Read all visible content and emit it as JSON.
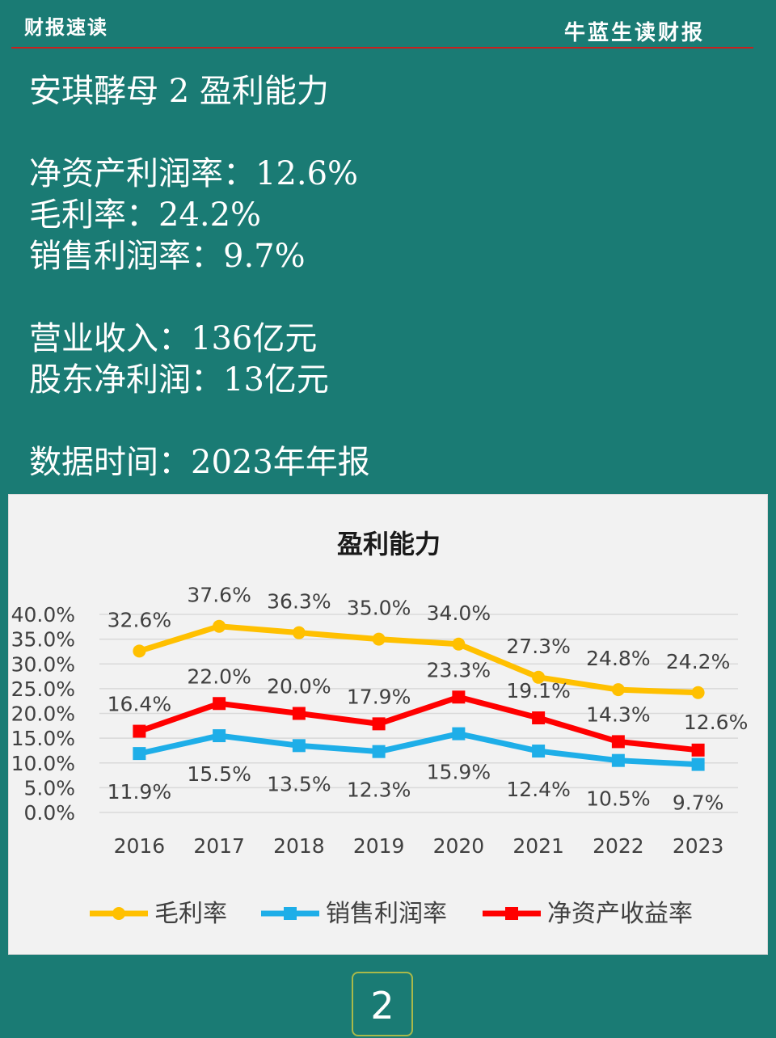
{
  "header": {
    "left_title": "财报速读",
    "right_title": "牛蓝生读财报"
  },
  "summary": {
    "heading": "安琪酵母 2 盈利能力",
    "roe": "净资产利润率：12.6%",
    "gross_margin": "毛利率：24.2%",
    "net_margin": "销售利润率：9.7%",
    "revenue": "营业收入：136亿元",
    "net_profit": "股东净利润：13亿元",
    "data_time": "数据时间：2023年年报"
  },
  "chart_data": {
    "type": "line",
    "title": "盈利能力",
    "categories": [
      "2016",
      "2017",
      "2018",
      "2019",
      "2020",
      "2021",
      "2022",
      "2023"
    ],
    "y_ticks": [
      "40.0%",
      "35.0%",
      "30.0%",
      "25.0%",
      "20.0%",
      "15.0%",
      "10.0%",
      "5.0%",
      "0.0%"
    ],
    "ylim": [
      0,
      40
    ],
    "grid": true,
    "legend_position": "bottom",
    "series": [
      {
        "name": "毛利率",
        "color": "#ffc000",
        "marker": "circle",
        "values": [
          32.6,
          37.6,
          36.3,
          35.0,
          34.0,
          27.3,
          24.8,
          24.2
        ],
        "labels": [
          "32.6%",
          "37.6%",
          "36.3%",
          "35.0%",
          "34.0%",
          "27.3%",
          "24.8%",
          "24.2%"
        ]
      },
      {
        "name": "销售利润率",
        "color": "#1eaee8",
        "marker": "square",
        "values": [
          11.9,
          15.5,
          13.5,
          12.3,
          15.9,
          12.4,
          10.5,
          9.7
        ],
        "labels": [
          "11.9%",
          "15.5%",
          "13.5%",
          "12.3%",
          "15.9%",
          "12.4%",
          "10.5%",
          "9.7%"
        ]
      },
      {
        "name": "净资产收益率",
        "color": "#ff0000",
        "marker": "square",
        "values": [
          16.4,
          22.0,
          20.0,
          17.9,
          23.3,
          19.1,
          14.3,
          12.6
        ],
        "labels": [
          "16.4%",
          "22.0%",
          "20.0%",
          "17.9%",
          "23.3%",
          "19.1%",
          "14.3%",
          "12.6%"
        ]
      }
    ]
  },
  "page_number": "2"
}
